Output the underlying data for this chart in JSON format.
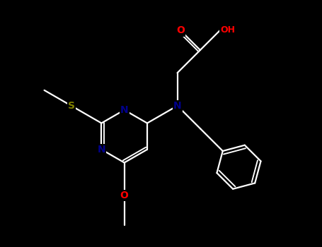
{
  "background_color": "#000000",
  "atom_colors": {
    "N": "#00008b",
    "O": "#ff0000",
    "S": "#808000"
  },
  "bond_color": "#ffffff",
  "bond_width": 1.6,
  "font_size": 10
}
